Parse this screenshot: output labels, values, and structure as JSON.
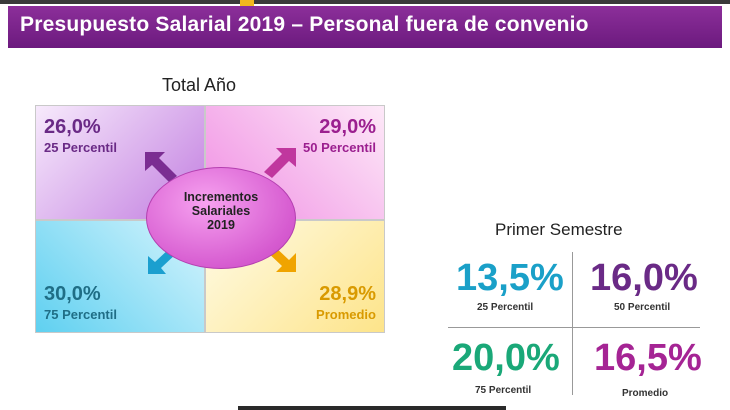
{
  "header": {
    "title": "Presupuesto Salarial 2019 – Personal fuera de convenio"
  },
  "total": {
    "title": "Total Año",
    "center": {
      "line1": "Incrementos",
      "line2": "Salariales",
      "line3": "2019"
    },
    "quadrants": [
      {
        "value": "26,0%",
        "label": "25 Percentil",
        "color": "#6a2a86"
      },
      {
        "value": "29,0%",
        "label": "50 Percentil",
        "color": "#9b1f8f"
      },
      {
        "value": "30,0%",
        "label": "75 Percentil",
        "color": "#1f6e86"
      },
      {
        "value": "28,9%",
        "label": "Promedio",
        "color": "#d99a00"
      }
    ]
  },
  "semestre": {
    "title": "Primer Semestre",
    "items": [
      {
        "value": "13,5%",
        "label": "25 Percentil",
        "color": "#1aa0c8"
      },
      {
        "value": "16,0%",
        "label": "50 Percentil",
        "color": "#6a2a86"
      },
      {
        "value": "20,0%",
        "label": "75 Percentil",
        "color": "#1aa878"
      },
      {
        "value": "16,5%",
        "label": "Promedio",
        "color": "#a52494"
      }
    ]
  },
  "icons": {
    "arrows": [
      "arrow-up-left-icon",
      "arrow-up-right-icon",
      "arrow-down-left-icon",
      "arrow-down-right-icon"
    ]
  }
}
